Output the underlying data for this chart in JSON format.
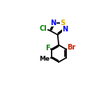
{
  "bg_color": "#ffffff",
  "bond_color": "#000000",
  "atom_colors": {
    "S": "#ddaa00",
    "N": "#0000ff",
    "Cl": "#008800",
    "F": "#008800",
    "Br": "#cc2200",
    "C": "#000000"
  },
  "figsize": [
    1.52,
    1.52
  ],
  "dpi": 100,
  "lw": 1.3,
  "fontsize": 7.0
}
